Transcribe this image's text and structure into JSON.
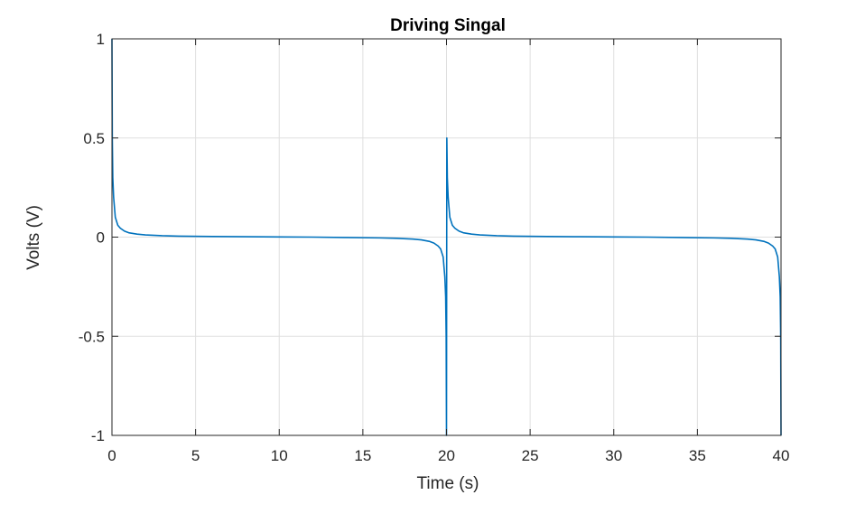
{
  "chart_data": {
    "type": "line",
    "title": "Driving Singal",
    "xlabel": "Time (s)",
    "ylabel": "Volts (V)",
    "xlim": [
      0,
      40
    ],
    "ylim": [
      -1,
      1
    ],
    "xticks": [
      0,
      5,
      10,
      15,
      20,
      25,
      30,
      35,
      40
    ],
    "xtick_labels": [
      "0",
      "5",
      "10",
      "15",
      "20",
      "25",
      "30",
      "35",
      "40"
    ],
    "yticks": [
      -1,
      -0.5,
      0,
      0.5,
      1
    ],
    "ytick_labels": [
      "-1",
      "-0.5",
      "0",
      "0.5",
      "1"
    ],
    "grid": true,
    "line_color": "#0072BD",
    "series": [
      {
        "x": [
          0,
          0.02,
          0.05,
          0.1,
          0.2,
          0.35,
          0.5,
          0.75,
          1.0,
          1.5,
          2.0,
          3.0,
          4.0,
          6.0,
          8.0,
          10.0,
          12.0,
          14.0,
          16.0,
          17.0,
          18.0,
          18.5,
          19.0,
          19.25,
          19.5,
          19.65,
          19.8,
          19.9,
          19.95,
          19.98,
          20.0,
          20.02,
          20.05,
          20.1,
          20.2,
          20.35,
          20.5,
          20.75,
          21.0,
          21.5,
          22.0,
          23.0,
          24.0,
          26.0,
          28.0,
          30.0,
          32.0,
          34.0,
          36.0,
          37.0,
          38.0,
          38.5,
          39.0,
          39.25,
          39.5,
          39.65,
          39.8,
          39.9,
          39.95,
          39.98,
          40.0
        ],
        "y": [
          1.0,
          0.5,
          0.3,
          0.2,
          0.1,
          0.06,
          0.045,
          0.03,
          0.022,
          0.015,
          0.011,
          0.007,
          0.005,
          0.003,
          0.002,
          0.001,
          0.0,
          -0.002,
          -0.004,
          -0.006,
          -0.01,
          -0.014,
          -0.022,
          -0.03,
          -0.045,
          -0.06,
          -0.1,
          -0.2,
          -0.3,
          -0.5,
          -1.0,
          0.5,
          0.3,
          0.2,
          0.1,
          0.06,
          0.045,
          0.03,
          0.022,
          0.015,
          0.011,
          0.007,
          0.005,
          0.003,
          0.002,
          0.001,
          0.0,
          -0.002,
          -0.004,
          -0.006,
          -0.01,
          -0.014,
          -0.022,
          -0.03,
          -0.045,
          -0.06,
          -0.1,
          -0.2,
          -0.3,
          -0.5,
          -1.0
        ]
      }
    ]
  }
}
